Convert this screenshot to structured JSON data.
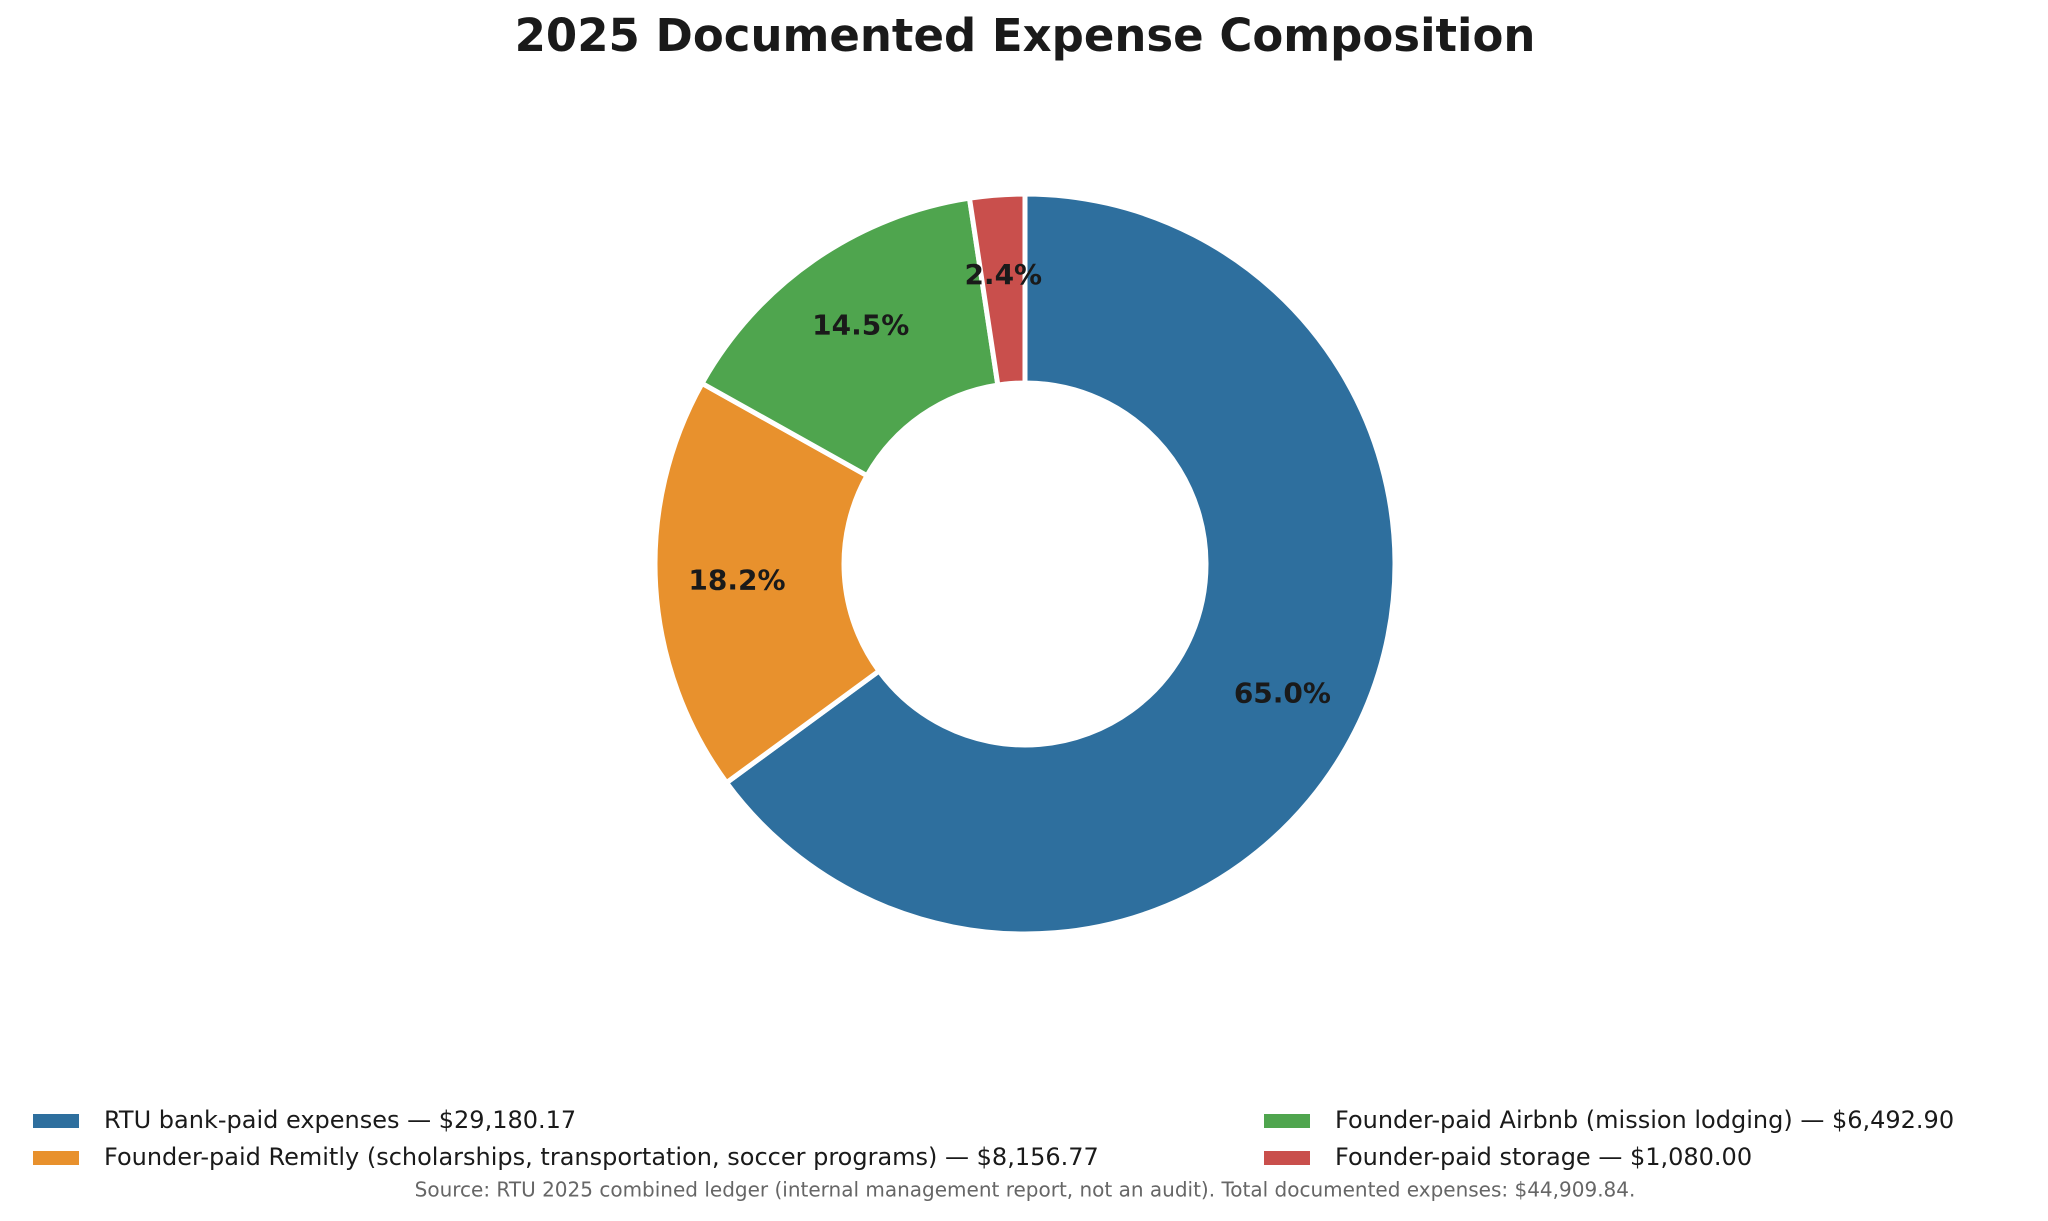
{
  "chart_data": {
    "type": "pie",
    "title": "2025 Documented Expense Composition",
    "categories": [
      "RTU bank-paid expenses — $29,180.17",
      "Founder-paid Remitly (scholarships, transportation, soccer programs) — $8,156.77",
      "Founder-paid Airbnb (mission lodging) — $6,492.90",
      "Founder-paid storage — $1,080.00"
    ],
    "values": [
      65.0,
      18.2,
      14.5,
      2.4
    ],
    "value_labels": [
      "65.0%",
      "18.2%",
      "14.5%",
      "2.4%"
    ],
    "colors": [
      "#2e6f9e",
      "#e8912d",
      "#4fa54e",
      "#c94f4c"
    ],
    "legend": "bottom",
    "source": "Source: RTU 2025 combined ledger (internal management report, not an audit).  Total documented expenses: $44,909.84."
  }
}
